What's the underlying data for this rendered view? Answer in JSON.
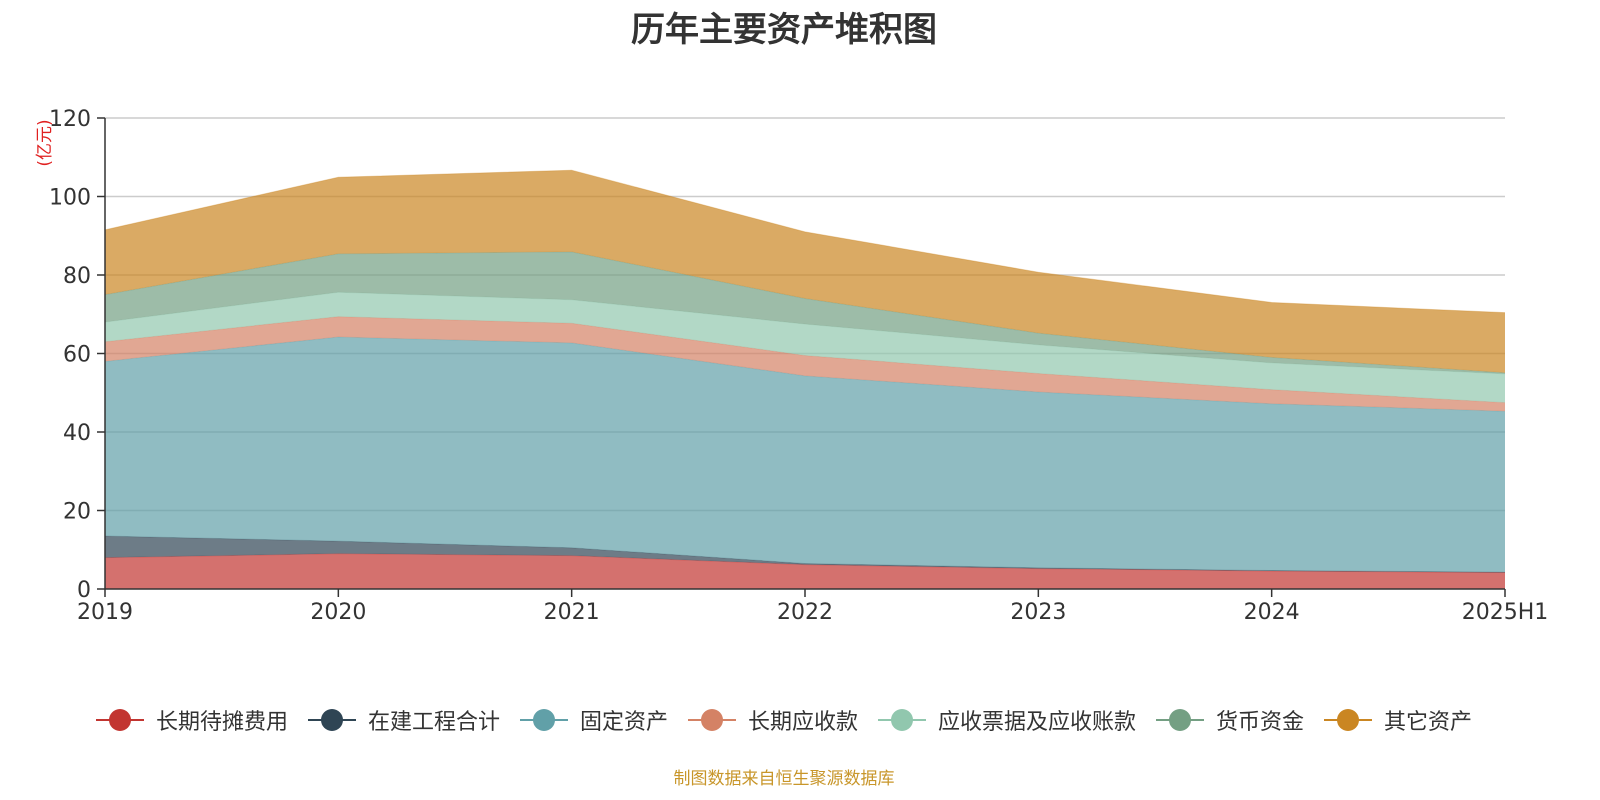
{
  "chart_data": {
    "type": "area",
    "stacked": true,
    "title": "历年主要资产堆积图",
    "ylabel": "(亿元)",
    "xlabel": "",
    "categories": [
      "2019",
      "2020",
      "2021",
      "2022",
      "2023",
      "2024",
      "2025H1"
    ],
    "ylim": [
      0,
      120
    ],
    "yticks": [
      0,
      20,
      40,
      60,
      80,
      100,
      120
    ],
    "grid": true,
    "legend_position": "bottom",
    "series": [
      {
        "name": "长期待摊费用",
        "color": "#c23531",
        "values": [
          8.0,
          9.0,
          8.5,
          6.2,
          5.2,
          4.6,
          4.2
        ]
      },
      {
        "name": "在建工程合计",
        "color": "#2f4554",
        "values": [
          5.5,
          3.2,
          2.0,
          0.3,
          0.2,
          0.1,
          0.1
        ]
      },
      {
        "name": "固定资产",
        "color": "#61a0a8",
        "values": [
          44.5,
          52.0,
          52.2,
          47.8,
          44.8,
          42.5,
          41.0
        ]
      },
      {
        "name": "长期应收款",
        "color": "#d48265",
        "values": [
          5.0,
          5.2,
          5.0,
          5.2,
          4.7,
          3.6,
          2.2
        ]
      },
      {
        "name": "应收票据及应收账款",
        "color": "#91c7ae",
        "values": [
          5.0,
          6.2,
          6.0,
          8.0,
          7.3,
          6.8,
          7.3
        ]
      },
      {
        "name": "货币资金",
        "color": "#749f83",
        "values": [
          7.0,
          9.8,
          12.2,
          6.5,
          3.0,
          1.4,
          0.3
        ]
      },
      {
        "name": "其它资产",
        "color": "#ca8622",
        "values": [
          16.5,
          19.5,
          20.8,
          17.0,
          15.5,
          14.0,
          15.3
        ]
      }
    ]
  },
  "source_note": "制图数据来自恒生聚源数据库"
}
